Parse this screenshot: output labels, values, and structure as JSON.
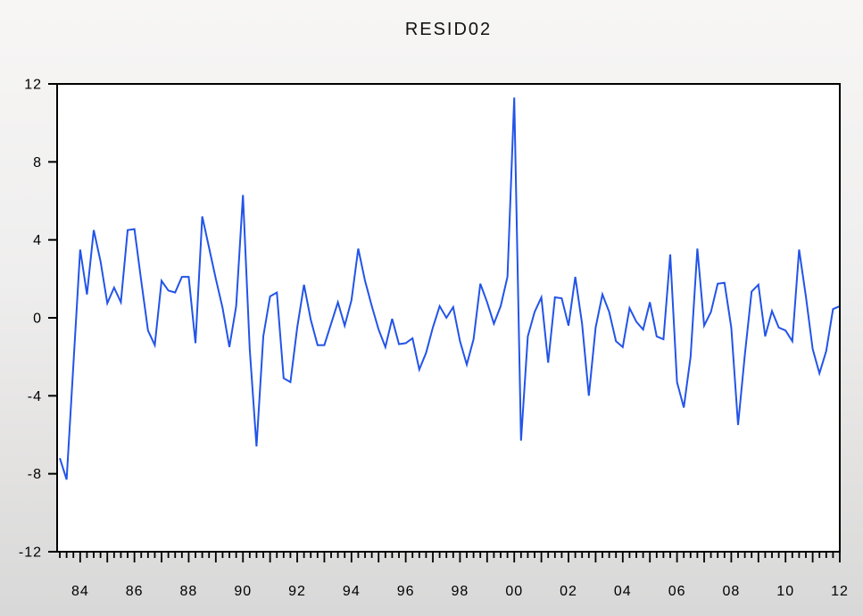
{
  "chart_data": {
    "type": "line",
    "title": "RESID02",
    "series_name": "RESID02",
    "xlabel": "",
    "ylabel": "",
    "x_unit": "quarterly",
    "x_start": 1983.25,
    "x_step": 0.25,
    "xlim": [
      1983.15,
      2012.0
    ],
    "ylim": [
      -12,
      12
    ],
    "y_ticks": [
      12,
      8,
      4,
      0,
      -4,
      -8,
      -12
    ],
    "x_tick_labels": [
      "84",
      "86",
      "88",
      "90",
      "92",
      "94",
      "96",
      "98",
      "00",
      "02",
      "04",
      "06",
      "08",
      "10",
      "12"
    ],
    "x_tick_years": [
      1984,
      1986,
      1988,
      1990,
      1992,
      1994,
      1996,
      1998,
      2000,
      2002,
      2004,
      2006,
      2008,
      2010,
      2012
    ],
    "grid": false,
    "legend": "none",
    "line_color": "#2254e8",
    "frame_color": "#000000",
    "plot_bg": "#ffffff",
    "values": [
      -7.2,
      -8.3,
      -2.4,
      3.5,
      1.2,
      4.5,
      2.9,
      0.75,
      1.55,
      0.8,
      4.5,
      4.55,
      1.9,
      -0.65,
      -1.4,
      1.9,
      1.4,
      1.3,
      2.1,
      2.1,
      -1.3,
      5.2,
      3.6,
      2.0,
      0.5,
      -1.5,
      0.6,
      6.3,
      -1.6,
      -6.6,
      -0.95,
      1.1,
      1.3,
      -3.1,
      -3.3,
      -0.5,
      1.7,
      -0.1,
      -1.4,
      -1.4,
      -0.3,
      0.8,
      -0.4,
      0.9,
      3.55,
      1.9,
      0.6,
      -0.6,
      -1.5,
      -0.05,
      -1.35,
      -1.3,
      -1.05,
      -2.65,
      -1.8,
      -0.5,
      0.6,
      0.0,
      0.55,
      -1.2,
      -2.4,
      -1.1,
      1.75,
      0.8,
      -0.3,
      0.6,
      2.1,
      11.3,
      -6.3,
      -0.95,
      0.3,
      1.05,
      -2.3,
      1.05,
      1.0,
      -0.4,
      2.1,
      -0.3,
      -4.0,
      -0.5,
      1.2,
      0.3,
      -1.2,
      -1.5,
      0.5,
      -0.2,
      -0.6,
      0.8,
      -0.95,
      -1.1,
      3.25,
      -3.3,
      -4.6,
      -2.0,
      3.55,
      -0.4,
      0.3,
      1.75,
      1.8,
      -0.5,
      -5.5,
      -1.9,
      1.35,
      1.7,
      -0.95,
      0.35,
      -0.5,
      -0.65,
      -1.2,
      3.5,
      1.1,
      -1.6,
      -2.85,
      -1.7,
      0.45,
      0.6
    ]
  }
}
